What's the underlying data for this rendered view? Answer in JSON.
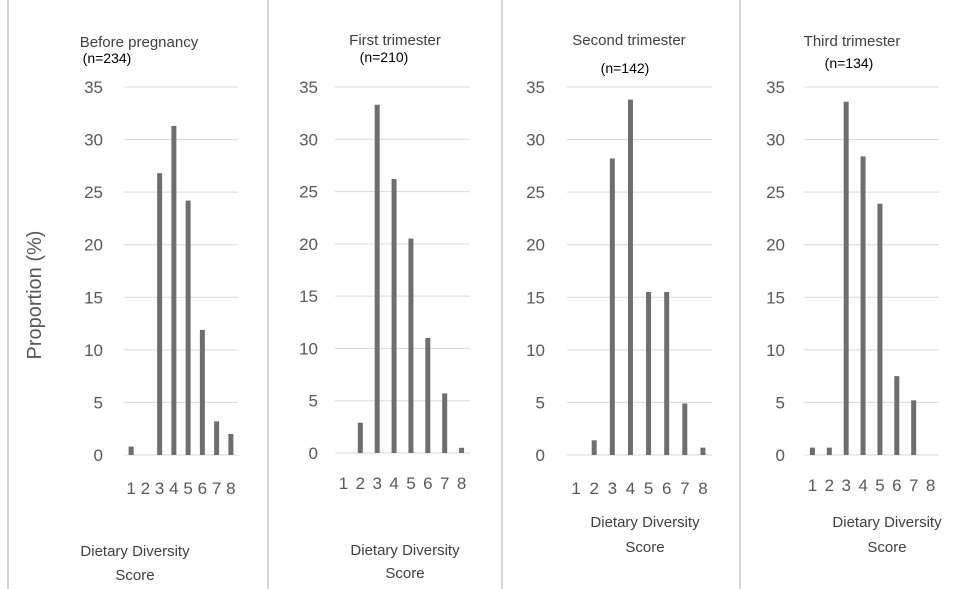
{
  "ylabel": "Proportion (%)",
  "chart_data": [
    {
      "type": "bar",
      "title": "Before pregnancy",
      "subtitle": "(n=234)",
      "xlabel": "Dietary Diversity Score",
      "categories": [
        "1",
        "2",
        "3",
        "4",
        "5",
        "6",
        "7",
        "8"
      ],
      "values": [
        0.8,
        0,
        26.8,
        31.3,
        24.2,
        11.9,
        3.2,
        2.0
      ],
      "ylim": [
        0,
        35
      ],
      "yticks": [
        "0",
        "5",
        "10",
        "15",
        "20",
        "25",
        "30",
        "35"
      ],
      "grid": true
    },
    {
      "type": "bar",
      "title": "First trimester",
      "subtitle": "(n=210)",
      "xlabel": "Dietary Diversity Score",
      "categories": [
        "1",
        "2",
        "3",
        "4",
        "5",
        "6",
        "7",
        "8"
      ],
      "values": [
        0,
        2.9,
        33.3,
        26.2,
        20.5,
        11.0,
        5.7,
        0.5
      ],
      "ylim": [
        0,
        35
      ],
      "yticks": [
        "0",
        "5",
        "10",
        "15",
        "20",
        "25",
        "30",
        "35"
      ],
      "grid": true
    },
    {
      "type": "bar",
      "title": "Second trimester",
      "subtitle": "(n=142)",
      "xlabel": "Dietary Diversity Score",
      "categories": [
        "1",
        "2",
        "3",
        "4",
        "5",
        "6",
        "7",
        "8"
      ],
      "values": [
        0,
        1.4,
        28.2,
        33.8,
        15.5,
        15.5,
        4.9,
        0.7
      ],
      "ylim": [
        0,
        35
      ],
      "yticks": [
        "0",
        "5",
        "10",
        "15",
        "20",
        "25",
        "30",
        "35"
      ],
      "grid": true
    },
    {
      "type": "bar",
      "title": "Third trimester",
      "subtitle": "(n=134)",
      "xlabel": "Dietary Diversity Score",
      "categories": [
        "1",
        "2",
        "3",
        "4",
        "5",
        "6",
        "7",
        "8"
      ],
      "values": [
        0.7,
        0.7,
        33.6,
        28.4,
        23.9,
        7.5,
        5.2,
        0
      ],
      "ylim": [
        0,
        35
      ],
      "yticks": [
        "0",
        "5",
        "10",
        "15",
        "20",
        "25",
        "30",
        "35"
      ],
      "grid": true
    }
  ]
}
